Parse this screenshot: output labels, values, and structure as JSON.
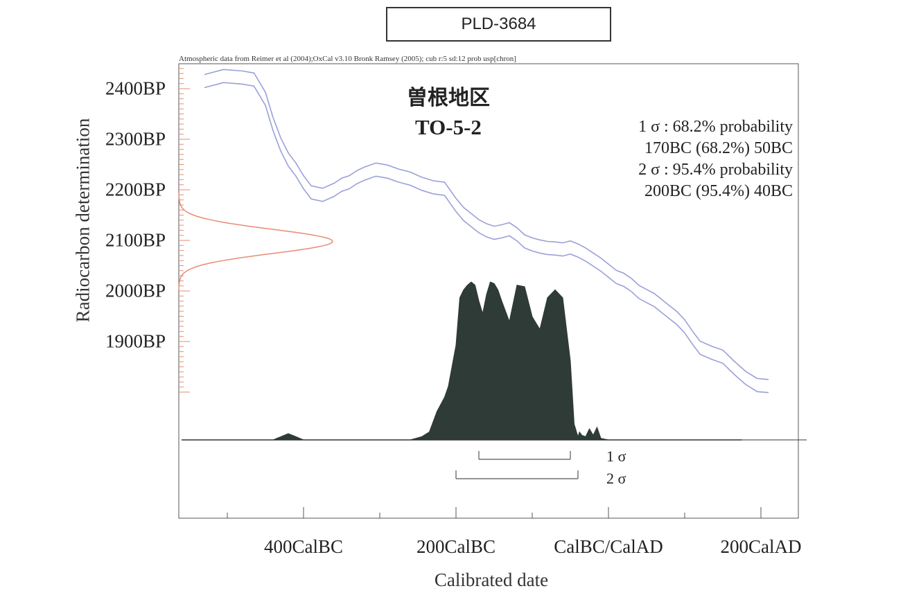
{
  "lab_code": "PLD-3684",
  "credits": "Atmospheric data from Reimer et al (2004);OxCal v3.10 Bronk Ramsey (2005); cub r:5 sd:12 prob usp[chron]",
  "site_name": "曽根地区",
  "sample_id": "TO-5-2",
  "stats": {
    "one_sigma_title": "1 σ  : 68.2% probability",
    "one_sigma_range": "170BC (68.2%) 50BC",
    "two_sigma_title": "2 σ  : 95.4% probability",
    "two_sigma_range": "200BC (95.4%) 40BC"
  },
  "ranges": {
    "one_sigma_label": "1 σ",
    "two_sigma_label": "2 σ"
  },
  "colors": {
    "curve": "#9aa0d8",
    "radiocarbon_dist": "#e98a72",
    "calibrated_dist": "#2f3b36",
    "axis": "#555555"
  },
  "chart_data": {
    "type": "area",
    "title": "",
    "xlabel": "Calibrated date",
    "ylabel": "Radiocarbon determination",
    "x_ticks": [
      {
        "label": "400CalBC",
        "value": -400
      },
      {
        "label": "200CalBC",
        "value": -200
      },
      {
        "label": "CalBC/CalAD",
        "value": 0
      },
      {
        "label": "200CalAD",
        "value": 200
      }
    ],
    "y_ticks": [
      {
        "label": "2400BP",
        "value": 2400
      },
      {
        "label": "2300BP",
        "value": 2300
      },
      {
        "label": "2200BP",
        "value": 2200
      },
      {
        "label": "2100BP",
        "value": 2100
      },
      {
        "label": "2000BP",
        "value": 2000
      },
      {
        "label": "1900BP",
        "value": 1900
      }
    ],
    "xlim": [
      -560,
      260
    ],
    "ylim": [
      1600,
      2460
    ],
    "calibration_curve": {
      "x": [
        -530,
        -505,
        -480,
        -465,
        -450,
        -440,
        -430,
        -420,
        -410,
        -400,
        -390,
        -375,
        -360,
        -350,
        -340,
        -330,
        -320,
        -305,
        -290,
        -275,
        -260,
        -245,
        -230,
        -215,
        -200,
        -190,
        -180,
        -170,
        -160,
        -150,
        -140,
        -130,
        -120,
        -110,
        -100,
        -90,
        -80,
        -70,
        -60,
        -50,
        -40,
        -30,
        -20,
        -10,
        0,
        10,
        20,
        30,
        40,
        50,
        60,
        70,
        80,
        90,
        100,
        110,
        120,
        135,
        150,
        165,
        180,
        195,
        210
      ],
      "y": [
        2415,
        2425,
        2422,
        2418,
        2380,
        2330,
        2290,
        2260,
        2240,
        2215,
        2195,
        2190,
        2200,
        2210,
        2215,
        2225,
        2232,
        2240,
        2236,
        2228,
        2222,
        2212,
        2205,
        2202,
        2170,
        2152,
        2140,
        2128,
        2120,
        2115,
        2118,
        2122,
        2112,
        2098,
        2092,
        2088,
        2085,
        2084,
        2082,
        2086,
        2080,
        2072,
        2062,
        2052,
        2040,
        2028,
        2022,
        2012,
        1998,
        1990,
        1982,
        1970,
        1958,
        1946,
        1930,
        1908,
        1888,
        1878,
        1870,
        1848,
        1828,
        1814,
        1812
      ],
      "band_half_width": 13
    },
    "radiocarbon_distribution": {
      "mean_bp": 2098,
      "sd_bp": 24
    },
    "calibrated_distribution": {
      "x": [
        -560,
        -440,
        -430,
        -420,
        -410,
        -400,
        -300,
        -260,
        -245,
        -235,
        -225,
        -215,
        -210,
        -200,
        -195,
        -190,
        -185,
        -180,
        -175,
        -170,
        -165,
        -160,
        -155,
        -150,
        -145,
        -140,
        -130,
        -120,
        -110,
        -100,
        -90,
        -80,
        -70,
        -60,
        -50,
        -45,
        -40,
        -38,
        -35,
        -30,
        -25,
        -20,
        -15,
        -10,
        0,
        260
      ],
      "y": [
        0,
        0,
        0.02,
        0.04,
        0.02,
        0,
        0,
        0,
        0.02,
        0.05,
        0.18,
        0.27,
        0.34,
        0.6,
        0.9,
        0.95,
        0.98,
        1.0,
        0.98,
        0.88,
        0.8,
        0.92,
        1.0,
        0.99,
        0.95,
        0.88,
        0.75,
        0.98,
        0.97,
        0.78,
        0.7,
        0.9,
        0.95,
        0.9,
        0.5,
        0.1,
        0.02,
        0.05,
        0.03,
        0.02,
        0.07,
        0.03,
        0.08,
        0.01,
        0,
        0
      ]
    },
    "ranges": [
      {
        "name": "1σ",
        "from": -170,
        "to": -50,
        "probability": 68.2
      },
      {
        "name": "2σ",
        "from": -200,
        "to": -40,
        "probability": 95.4
      }
    ],
    "legend": "top-right",
    "grid": false
  }
}
